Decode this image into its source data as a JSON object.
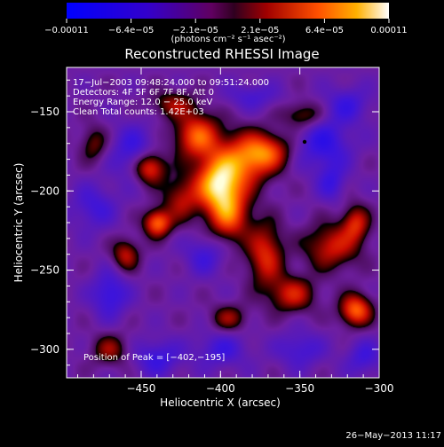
{
  "chart_data": {
    "type": "heatmap",
    "title": "Reconstructed RHESSI Image",
    "xlabel": "Heliocentric X (arcsec)",
    "ylabel": "Heliocentric Y (arcsec)",
    "xlim": [
      -497,
      -300
    ],
    "ylim": [
      -318,
      -122
    ],
    "xticks": [
      -450,
      -400,
      -350,
      -300
    ],
    "xtick_labels": [
      "−450",
      "−400",
      "−350",
      "−300"
    ],
    "yticks": [
      -150,
      -200,
      -250,
      -300
    ],
    "ytick_labels": [
      "−150",
      "−200",
      "−250",
      "−300"
    ],
    "colorbar": {
      "min": -0.00011,
      "max": 0.00011,
      "tick_labels": [
        "−0.00011",
        "−6.4e−05",
        "−2.1e−05",
        "2.1e−05",
        "6.4e−05",
        "0.00011"
      ],
      "unit_label": "(photons cm⁻² s⁻¹ asec⁻²)"
    },
    "annotations": [
      "17−Jul−2003 09:48:24.000 to 09:51:24.000",
      "Detectors: 4F 5F 6F 7F 8F, Att 0",
      "Energy Range: 12.0 − 25.0 keV",
      "Clean    Total counts: 1.42E+03"
    ],
    "peak_label": "Position of Peak = [−402,−195]",
    "peak": [
      -402,
      -195
    ],
    "marker": [
      -347,
      -169
    ],
    "blobs": [
      {
        "x": -402,
        "y": -195,
        "sx": 10,
        "sy": 12,
        "v": 1.0
      },
      {
        "x": -395,
        "y": -215,
        "sx": 9,
        "sy": 12,
        "v": 0.7
      },
      {
        "x": -385,
        "y": -180,
        "sx": 12,
        "sy": 12,
        "v": 0.7
      },
      {
        "x": -370,
        "y": -175,
        "sx": 10,
        "sy": 8,
        "v": 0.55
      },
      {
        "x": -415,
        "y": -165,
        "sx": 10,
        "sy": 10,
        "v": 0.75
      },
      {
        "x": -425,
        "y": -205,
        "sx": 8,
        "sy": 10,
        "v": 0.45
      },
      {
        "x": -445,
        "y": -185,
        "sx": 7,
        "sy": 7,
        "v": 0.75
      },
      {
        "x": -440,
        "y": -220,
        "sx": 6,
        "sy": 6,
        "v": 0.8
      },
      {
        "x": -372,
        "y": -240,
        "sx": 8,
        "sy": 14,
        "v": 0.6
      },
      {
        "x": -330,
        "y": -235,
        "sx": 12,
        "sy": 10,
        "v": 0.55
      },
      {
        "x": -315,
        "y": -220,
        "sx": 6,
        "sy": 8,
        "v": 0.55
      },
      {
        "x": -460,
        "y": -240,
        "sx": 6,
        "sy": 7,
        "v": 0.5
      },
      {
        "x": -355,
        "y": -265,
        "sx": 10,
        "sy": 8,
        "v": 0.55
      },
      {
        "x": -315,
        "y": -275,
        "sx": 7,
        "sy": 7,
        "v": 0.8
      },
      {
        "x": -395,
        "y": -280,
        "sx": 8,
        "sy": 6,
        "v": 0.4
      },
      {
        "x": -470,
        "y": -300,
        "sx": 8,
        "sy": 7,
        "v": 0.4
      },
      {
        "x": -480,
        "y": -170,
        "sx": 6,
        "sy": 8,
        "v": 0.35
      },
      {
        "x": -348,
        "y": -152,
        "sx": 9,
        "sy": 6,
        "v": 0.4
      },
      {
        "x": -430,
        "y": -145,
        "sx": 10,
        "sy": 6,
        "v": 0.4
      },
      {
        "x": -455,
        "y": -175,
        "sx": 10,
        "sy": 12,
        "v": -0.35
      },
      {
        "x": -480,
        "y": -210,
        "sx": 10,
        "sy": 10,
        "v": -0.3
      },
      {
        "x": -470,
        "y": -265,
        "sx": 8,
        "sy": 10,
        "v": -0.4
      },
      {
        "x": -440,
        "y": -305,
        "sx": 10,
        "sy": 8,
        "v": -0.35
      },
      {
        "x": -400,
        "y": -300,
        "sx": 12,
        "sy": 8,
        "v": -0.3
      },
      {
        "x": -350,
        "y": -300,
        "sx": 10,
        "sy": 8,
        "v": -0.3
      },
      {
        "x": -335,
        "y": -170,
        "sx": 12,
        "sy": 12,
        "v": -0.4
      },
      {
        "x": -320,
        "y": -145,
        "sx": 10,
        "sy": 8,
        "v": -0.3
      },
      {
        "x": -410,
        "y": -240,
        "sx": 9,
        "sy": 9,
        "v": -0.3
      },
      {
        "x": -380,
        "y": -140,
        "sx": 12,
        "sy": 6,
        "v": -0.25
      },
      {
        "x": -330,
        "y": -195,
        "sx": 6,
        "sy": 8,
        "v": -0.3
      },
      {
        "x": -310,
        "y": -305,
        "sx": 8,
        "sy": 8,
        "v": -0.3
      }
    ]
  },
  "date_stamp": "26−May−2013 11:17"
}
